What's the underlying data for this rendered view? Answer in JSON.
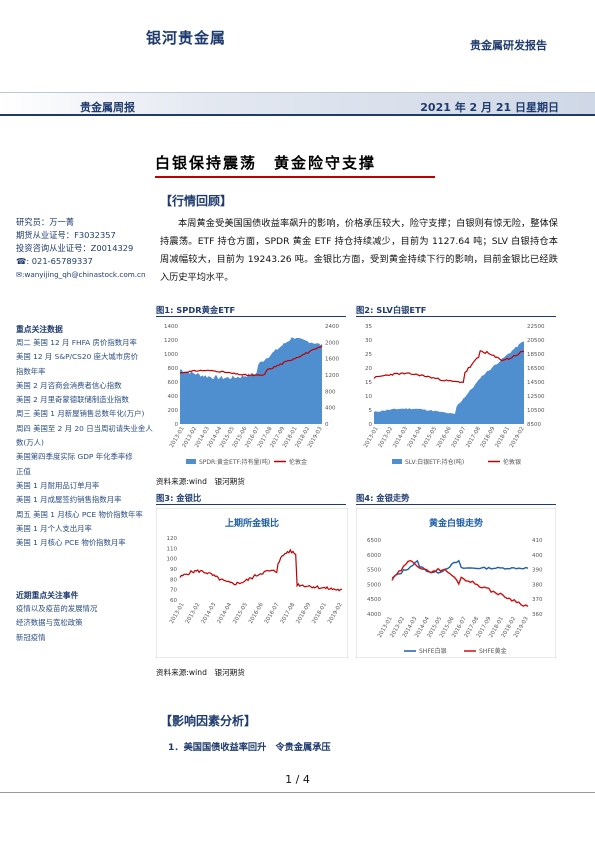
{
  "header": {
    "brand": "银河贵金属",
    "report_type": "贵金属研发报告",
    "weekly": "贵金属周报",
    "date": "2021 年 2 月 21 日星期日"
  },
  "title": "白银保持震荡　黄金险守支撑",
  "section1": {
    "heading": "【行情回顾】",
    "paragraph": "本周黄金受美国国债收益率飙升的影响，价格承压较大，险守支撑；白银则有惊无险，整体保持震荡。ETF 持仓方面，SPDR 黄金 ETF 持仓持续减少，目前为 1127.64 吨；SLV 白银持仓本周减幅较大，目前为 19243.26 吨。金银比方面，受到黄金持续下行的影响，目前金银比已经跌入历史平均水平。"
  },
  "sidebar": {
    "analyst": "研究员：万一菁",
    "license1": "期货从业证号：F3032357",
    "license2": "投资咨询从业证号：Z0014329",
    "phone": "☎: 021-65789337",
    "email": "✉:wanyijing_qh@chinastock.com.cn",
    "data_heading": "重点关注数据",
    "data_items": [
      "周二  美国 12 月 FHFA 房价指数月率",
      "        美国 12 月 S&P/CS20 座大城市房价",
      "        指数年率",
      "        美国 2 月咨商会消费者信心指数",
      "        美国 2 月里奇蒙德联储制造业指数",
      "周三  美国 1 月新屋销售总数年化(万户)",
      "周四  美国至 2 月 20 日当周初请失业金人",
      "        数(万人)",
      "        美国第四季度实际 GDP 年化季率修",
      "        正值",
      "        美国 1 月耐用品订单月率",
      "        美国 1 月成屋签约销售指数月率",
      "周五  美国 1 月核心 PCE 物价指数年率",
      "        美国 1 月个人支出月率",
      "        美国 1 月核心 PCE 物价指数月率"
    ],
    "events_heading": "近期重点关注事件",
    "events_items": [
      "疫情以及疫苗的发展情况",
      "经济数据与宽松政策",
      "新冠疫情"
    ]
  },
  "figures": {
    "fig1": {
      "label": "图1: SPDR黄金ETF",
      "legend": [
        "SPDR:黄金ETF:持有量(吨)",
        "伦敦金"
      ]
    },
    "fig2": {
      "label": "图2: SLV白银ETF",
      "legend": [
        "SLV:白银ETF:持仓(吨)",
        "伦敦银"
      ]
    },
    "fig3": {
      "label": "图3: 金银比",
      "ctitle": "上期所金银比"
    },
    "fig4": {
      "label": "图4: 金银走势",
      "ctitle": "黄金白银走势",
      "legend": [
        "SHFE白银",
        "SHFE黄金"
      ]
    },
    "source1": "资料来源:wind　银河期货",
    "source2": "资料来源:wind　银河期货"
  },
  "section2": {
    "heading": "【影响因素分析】",
    "sub1": "1．美国国债收益率回升　令贵金属承压"
  },
  "footer": {
    "page": "1 / 4"
  },
  "chart_data": [
    {
      "type": "area",
      "title": "SPDR黄金ETF",
      "series": [
        {
          "name": "SPDR:黄金ETF:持有量(吨)",
          "axis": "left"
        },
        {
          "name": "伦敦金",
          "axis": "right"
        }
      ],
      "left_ylim": [
        0,
        1400
      ],
      "right_ylim": [
        0,
        2400
      ],
      "left_ticks": [
        0,
        200,
        400,
        600,
        800,
        1000,
        1200,
        1400
      ],
      "right_ticks": [
        0,
        400,
        800,
        1200,
        1600,
        2000,
        2400
      ]
    },
    {
      "type": "area",
      "title": "SLV白银ETF",
      "series": [
        {
          "name": "SLV:白银ETF:持仓(吨)",
          "axis": "right"
        },
        {
          "name": "伦敦银",
          "axis": "left"
        }
      ],
      "left_ylim": [
        0,
        35
      ],
      "right_ylim": [
        8500,
        22500
      ],
      "left_ticks": [
        0,
        5,
        10,
        15,
        20,
        25,
        30,
        35
      ],
      "right_ticks": [
        8500,
        10500,
        12500,
        14500,
        16500,
        18500,
        20500,
        22500
      ]
    },
    {
      "type": "line",
      "title": "上期所金银比",
      "ylim": [
        0,
        120
      ],
      "yticks": [
        0,
        10,
        20,
        30,
        40,
        50,
        60,
        70,
        80,
        90,
        100,
        110,
        120
      ],
      "series": [
        {
          "name": "上期所金银比"
        }
      ]
    },
    {
      "type": "line",
      "title": "黄金白银走势",
      "series": [
        {
          "name": "SHFE白银",
          "axis": "left"
        },
        {
          "name": "SHFE黄金",
          "axis": "right"
        }
      ],
      "left_ylim": [
        4000,
        6500
      ],
      "right_ylim": [
        360,
        410
      ],
      "left_ticks": [
        4000,
        4500,
        5000,
        5500,
        6000,
        6500
      ],
      "right_ticks": [
        360,
        370,
        380,
        390,
        400,
        410
      ]
    }
  ]
}
